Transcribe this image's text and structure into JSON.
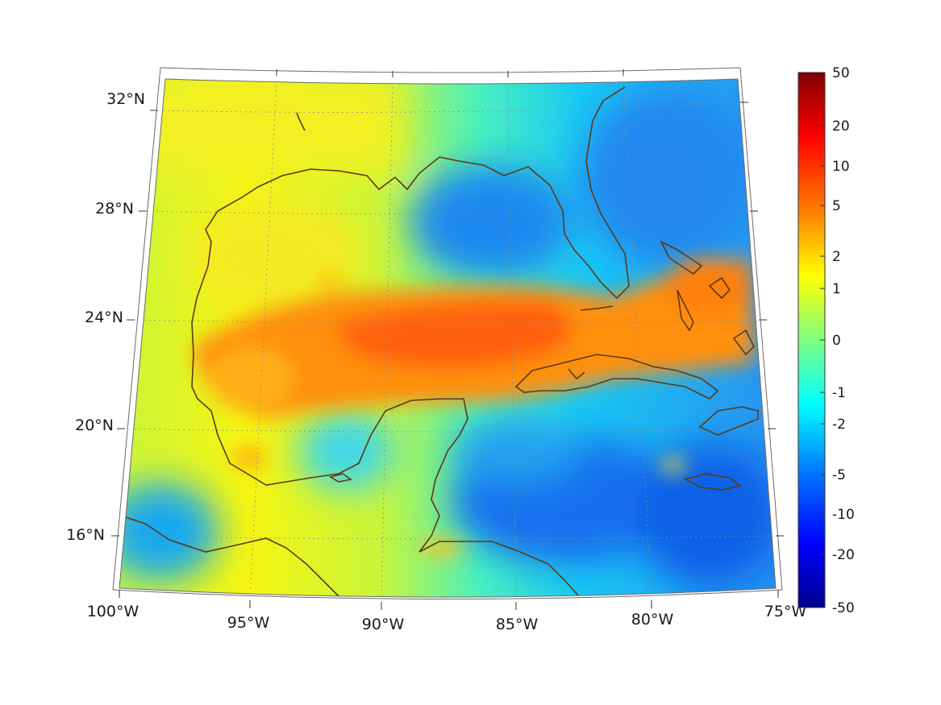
{
  "map": {
    "projection": "conic",
    "lon_range": [
      -100,
      -75
    ],
    "lat_range": [
      14,
      33
    ],
    "longitude_labels": [
      "100°W",
      "95°W",
      "90°W",
      "85°W",
      "80°W",
      "75°W"
    ],
    "latitude_labels": [
      "32°N",
      "28°N",
      "24°N",
      "20°N",
      "16°N"
    ],
    "graticule": "dotted grey",
    "coastline_color": "#5b3a16",
    "field_colormap": "jet"
  },
  "colorbar": {
    "scale": "symmetric log",
    "tick_labels": [
      "50",
      "20",
      "10",
      "5",
      "2",
      "1",
      "0",
      "-1",
      "-2",
      "-5",
      "-10",
      "-20",
      "-50"
    ],
    "colors": [
      "#00008f",
      "#0000ff",
      "#007fff",
      "#00ffff",
      "#7fff7f",
      "#ffff00",
      "#ff7f00",
      "#ff0000",
      "#7f0000"
    ]
  }
}
